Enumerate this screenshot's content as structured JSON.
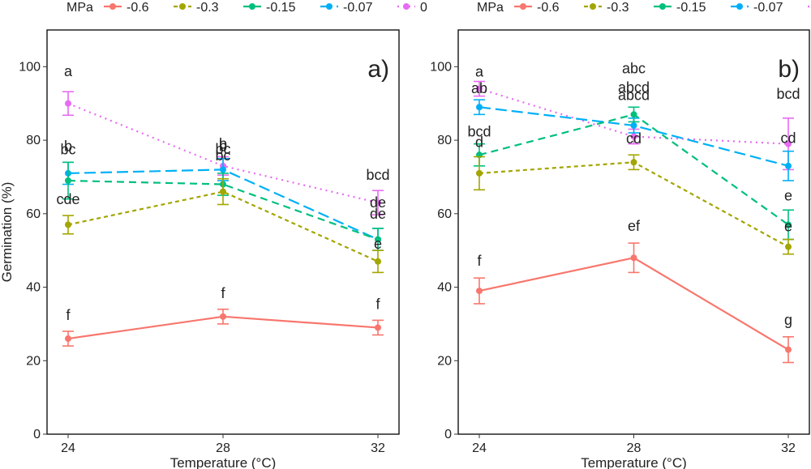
{
  "legend": {
    "title": "MPa",
    "entries": [
      {
        "label": "-0.6",
        "color": "#F8766D",
        "dash": "solid"
      },
      {
        "label": "-0.3",
        "color": "#A3A500",
        "dash": "dotted-short"
      },
      {
        "label": "-0.15",
        "color": "#00BF7D",
        "dash": "dashed"
      },
      {
        "label": "-0.07",
        "color": "#00B0F6",
        "dash": "longdash"
      },
      {
        "label": "0",
        "color": "#E76BF3",
        "dash": "dotted"
      }
    ]
  },
  "chart_data": [
    {
      "type": "line",
      "panel_label": "a)",
      "xlabel": "Temperature (°C)",
      "ylabel": "Germination (%)",
      "x": [
        "24",
        "28",
        "32"
      ],
      "yticks": [
        "0",
        "20",
        "40",
        "60",
        "80",
        "100"
      ],
      "ylim": [
        0,
        110
      ],
      "grid": false,
      "series": [
        {
          "name": "0",
          "values": [
            90,
            73,
            63
          ],
          "err": [
            3.2,
            2.5,
            3.3
          ],
          "labels": [
            "a",
            "b",
            "bcd"
          ]
        },
        {
          "name": "-0.07",
          "values": [
            71,
            72,
            53
          ],
          "err": [
            3,
            3,
            3
          ],
          "labels": [
            "bc",
            "bc",
            "de"
          ]
        },
        {
          "name": "-0.15",
          "values": [
            69,
            68,
            53
          ],
          "err": [
            5,
            3,
            3
          ],
          "labels": [
            "b",
            "bc",
            "de"
          ]
        },
        {
          "name": "-0.3",
          "values": [
            57,
            66,
            47
          ],
          "err": [
            2.5,
            3.5,
            3
          ],
          "labels": [
            "cde",
            "b",
            "e"
          ]
        },
        {
          "name": "-0.6",
          "values": [
            26,
            32,
            29
          ],
          "err": [
            2,
            2,
            2
          ],
          "labels": [
            "f",
            "f",
            "f"
          ]
        }
      ]
    },
    {
      "type": "line",
      "panel_label": "b)",
      "xlabel": "Temperature (°C)",
      "ylabel": "",
      "x": [
        "24",
        "28",
        "32"
      ],
      "yticks": [
        "0",
        "20",
        "40",
        "60",
        "80",
        "100"
      ],
      "ylim": [
        0,
        110
      ],
      "grid": false,
      "series": [
        {
          "name": "0",
          "values": [
            94,
            81,
            79
          ],
          "err": [
            2,
            2,
            7
          ],
          "labels": [
            "a",
            "abcd",
            "bcd"
          ]
        },
        {
          "name": "-0.07",
          "values": [
            89,
            84,
            73
          ],
          "err": [
            2,
            2,
            4
          ],
          "labels": [
            "ab",
            "abcd",
            "cd"
          ]
        },
        {
          "name": "-0.15",
          "values": [
            76,
            87,
            57
          ],
          "err": [
            3,
            2,
            4
          ],
          "labels": [
            "bcd",
            "abc",
            "e"
          ]
        },
        {
          "name": "-0.3",
          "values": [
            71,
            74,
            51
          ],
          "err": [
            4.5,
            2,
            2
          ],
          "labels": [
            "d",
            "cd",
            "e"
          ]
        },
        {
          "name": "-0.6",
          "values": [
            39,
            48,
            23
          ],
          "err": [
            3.5,
            4,
            3.5
          ],
          "labels": [
            "f",
            "ef",
            "g"
          ]
        }
      ]
    }
  ]
}
